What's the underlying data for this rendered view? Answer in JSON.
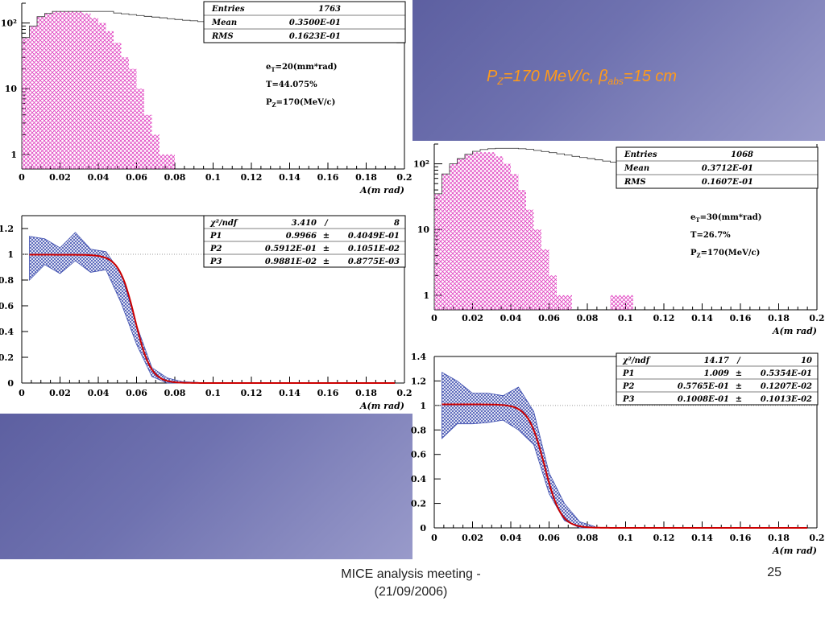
{
  "slide": {
    "title_parts": [
      "P",
      "Z",
      "=170 MeV/c, ",
      "β",
      "abs",
      "=15 cm"
    ],
    "footer_line1": "MICE analysis meeting -",
    "footer_line2": "(21/09/2006)",
    "page_number": "25"
  },
  "colors": {
    "hist_hatch": "#e040c0",
    "hist_outline": "#000000",
    "band": "#4050b0",
    "fit_curve": "#cc0000",
    "background_gradient_dark": "#3d3f86",
    "background_gradient_light": "#d8d8ea"
  },
  "chart_data": [
    {
      "id": "hist1",
      "type": "bar",
      "xlabel": "A(m rad)",
      "xlim": [
        0,
        0.2
      ],
      "x_ticks": [
        "0",
        "0.02",
        "0.04",
        "0.06",
        "0.08",
        "0.1",
        "0.12",
        "0.14",
        "0.16",
        "0.18",
        "0.2"
      ],
      "y_scale": "log",
      "ylim": [
        0.6,
        200
      ],
      "y_ticks": [
        {
          "v": 1,
          "label": "1"
        },
        {
          "v": 10,
          "label": "10"
        },
        {
          "v": 100,
          "label": "10²"
        }
      ],
      "bin_width": 0.004,
      "all_values": [
        60,
        90,
        125,
        140,
        150,
        150,
        150,
        150,
        150,
        150,
        150,
        150,
        142,
        138,
        134,
        130,
        126,
        123,
        120,
        116,
        113,
        110,
        108,
        105,
        102,
        100,
        98,
        96,
        94,
        92,
        90,
        88,
        86,
        84,
        82,
        80,
        77,
        74,
        71,
        68,
        66,
        64,
        62,
        60,
        58,
        56,
        54,
        52,
        51,
        50
      ],
      "sel_values": [
        60,
        90,
        125,
        140,
        150,
        150,
        150,
        150,
        140,
        120,
        100,
        75,
        50,
        30,
        20,
        10,
        4,
        2,
        1,
        1,
        0,
        0,
        0,
        0,
        0,
        0,
        0,
        0,
        0,
        0,
        0,
        0,
        0,
        0,
        0,
        0,
        0,
        0,
        0,
        0,
        0,
        0,
        0,
        0,
        0,
        0,
        0,
        0,
        0,
        0
      ],
      "stats": [
        {
          "label": "Entries",
          "value": "1763"
        },
        {
          "label": "Mean",
          "value": "0.3500E-01"
        },
        {
          "label": "RMS",
          "value": "0.1623E-01"
        }
      ],
      "notes": [
        [
          "e",
          "T",
          "=20(mm*rad)"
        ],
        [
          "T=44.075%"
        ],
        [
          "P",
          "Z",
          "=170(MeV/c)"
        ]
      ]
    },
    {
      "id": "trans1",
      "type": "line",
      "xlabel": "A(m rad)",
      "xlim": [
        0,
        0.2
      ],
      "x_ticks": [
        "0",
        "0.02",
        "0.04",
        "0.06",
        "0.08",
        "0.1",
        "0.12",
        "0.14",
        "0.16",
        "0.18",
        "0.2"
      ],
      "ylim": [
        0,
        1.3
      ],
      "y_ticks": [
        "0",
        "0.2",
        "0.4",
        "0.6",
        "0.8",
        "1",
        "1.2"
      ],
      "y_tick_values": [
        0,
        0.2,
        0.4,
        0.6,
        0.8,
        1,
        1.2
      ],
      "band_x": [
        0.004,
        0.012,
        0.02,
        0.028,
        0.036,
        0.044,
        0.052,
        0.06,
        0.068,
        0.076,
        0.084,
        0.092
      ],
      "band_hi": [
        1.14,
        1.12,
        1.05,
        1.17,
        1.04,
        1.02,
        0.85,
        0.45,
        0.12,
        0.04,
        0.01,
        0.005
      ],
      "band_lo": [
        0.8,
        0.92,
        0.85,
        0.95,
        0.86,
        0.88,
        0.62,
        0.3,
        0.05,
        0.0,
        0.0,
        0.0
      ],
      "fit": {
        "p1": 0.9966,
        "p2": 0.05912,
        "p3": 0.009881,
        "x_end": 0.196
      },
      "stats": [
        {
          "label": "χ²/ndf",
          "value": "3.410",
          "sep": "/",
          "err": "8"
        },
        {
          "label": "P1",
          "value": "0.9966",
          "sep": "±",
          "err": "0.4049E-01"
        },
        {
          "label": "P2",
          "value": "0.5912E-01",
          "sep": "±",
          "err": "0.1051E-02"
        },
        {
          "label": "P3",
          "value": "0.9881E-02",
          "sep": "±",
          "err": "0.8775E-03"
        }
      ]
    },
    {
      "id": "hist2",
      "type": "bar",
      "xlabel": "A(m rad)",
      "xlim": [
        0,
        0.2
      ],
      "x_ticks": [
        "0",
        "0.02",
        "0.04",
        "0.06",
        "0.08",
        "0.1",
        "0.12",
        "0.14",
        "0.16",
        "0.18",
        "0.2"
      ],
      "y_scale": "log",
      "ylim": [
        0.6,
        200
      ],
      "y_ticks": [
        {
          "v": 1,
          "label": "1"
        },
        {
          "v": 10,
          "label": "10"
        },
        {
          "v": 100,
          "label": "10²"
        }
      ],
      "bin_width": 0.004,
      "all_values": [
        35,
        70,
        100,
        120,
        140,
        155,
        165,
        170,
        172,
        172,
        172,
        170,
        166,
        160,
        154,
        148,
        142,
        136,
        130,
        125,
        120,
        115,
        110,
        106,
        102,
        98,
        95,
        92,
        90,
        88,
        86,
        84,
        82,
        80,
        78,
        76,
        74,
        72,
        70,
        68,
        66,
        64,
        62,
        60,
        58,
        56,
        54,
        52,
        50,
        48
      ],
      "sel_values": [
        35,
        70,
        100,
        120,
        140,
        150,
        150,
        150,
        130,
        100,
        70,
        40,
        20,
        10,
        5,
        2,
        1,
        1,
        0,
        0,
        0,
        0,
        0,
        1,
        1,
        1,
        0,
        0,
        0,
        0,
        0,
        0,
        0,
        0,
        0,
        0,
        0,
        0,
        0,
        0,
        0,
        0,
        0,
        0,
        0,
        0,
        0,
        0,
        0,
        0
      ],
      "stats": [
        {
          "label": "Entries",
          "value": "1068"
        },
        {
          "label": "Mean",
          "value": "0.3712E-01"
        },
        {
          "label": "RMS",
          "value": "0.1607E-01"
        }
      ],
      "notes": [
        [
          "e",
          "T",
          "=30(mm*rad)"
        ],
        [
          "T=26.7%"
        ],
        [
          "P",
          "Z",
          "=170(MeV/c)"
        ]
      ]
    },
    {
      "id": "trans2",
      "type": "line",
      "xlabel": "A(m rad)",
      "xlim": [
        0,
        0.2
      ],
      "x_ticks": [
        "0",
        "0.02",
        "0.04",
        "0.06",
        "0.08",
        "0.1",
        "0.12",
        "0.14",
        "0.16",
        "0.18",
        "0.2"
      ],
      "ylim": [
        0,
        1.4
      ],
      "y_ticks": [
        "0",
        "0.2",
        "0.4",
        "0.6",
        "0.8",
        "1",
        "1.2",
        "1.4"
      ],
      "y_tick_values": [
        0,
        0.2,
        0.4,
        0.6,
        0.8,
        1,
        1.2,
        1.4
      ],
      "band_x": [
        0.004,
        0.012,
        0.02,
        0.028,
        0.036,
        0.044,
        0.052,
        0.06,
        0.068,
        0.076,
        0.084
      ],
      "band_hi": [
        1.27,
        1.2,
        1.1,
        1.1,
        1.08,
        1.15,
        0.95,
        0.45,
        0.2,
        0.05,
        0.01
      ],
      "band_lo": [
        0.73,
        0.85,
        0.85,
        0.86,
        0.88,
        0.8,
        0.68,
        0.28,
        0.06,
        0.0,
        0.0
      ],
      "fit": {
        "p1": 1.009,
        "p2": 0.05765,
        "p3": 0.01008,
        "x_end": 0.196
      },
      "stats": [
        {
          "label": "χ²/ndf",
          "value": "14.17",
          "sep": "/",
          "err": "10"
        },
        {
          "label": "P1",
          "value": "1.009",
          "sep": "±",
          "err": "0.5354E-01"
        },
        {
          "label": "P2",
          "value": "0.5765E-01",
          "sep": "±",
          "err": "0.1207E-02"
        },
        {
          "label": "P3",
          "value": "0.1008E-01",
          "sep": "±",
          "err": "0.1013E-02"
        }
      ]
    }
  ]
}
